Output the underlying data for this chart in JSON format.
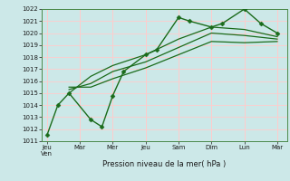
{
  "title": "",
  "xlabel": "Pression niveau de la mer( hPa )",
  "bg_color": "#cce8e8",
  "grid_color": "#ffcccc",
  "line_color": "#1a6b1a",
  "ylim": [
    1011,
    1022
  ],
  "yticks": [
    1011,
    1012,
    1013,
    1014,
    1015,
    1016,
    1017,
    1018,
    1019,
    1020,
    1021,
    1022
  ],
  "x_labels": [
    "Jeu\nVen",
    "Mar",
    "Mer",
    "Jeu",
    "Sam",
    "Dim",
    "Lun",
    "Mar"
  ],
  "x_positions": [
    0,
    1,
    2,
    3,
    4,
    5,
    6,
    7
  ],
  "xlim": [
    -0.15,
    7.3
  ],
  "series": [
    {
      "x": [
        0,
        0.33,
        0.67,
        1.33,
        1.67,
        2,
        2.33,
        3,
        3.33,
        4,
        4.33,
        5,
        5.33,
        6,
        6.5,
        7
      ],
      "y": [
        1011.5,
        1014.0,
        1015.0,
        1012.8,
        1012.2,
        1014.8,
        1016.8,
        1018.2,
        1018.6,
        1021.3,
        1021.0,
        1020.5,
        1020.8,
        1022.0,
        1020.8,
        1020.0
      ],
      "marker": "D",
      "markersize": 2.5,
      "linewidth": 1.0
    },
    {
      "x": [
        0.67,
        1.33,
        2,
        3,
        4,
        5,
        6,
        7
      ],
      "y": [
        1015.0,
        1016.4,
        1017.3,
        1018.2,
        1019.5,
        1020.5,
        1020.3,
        1019.7
      ],
      "marker": null,
      "linewidth": 0.9
    },
    {
      "x": [
        0.67,
        1.33,
        2,
        3,
        4,
        5,
        6,
        7
      ],
      "y": [
        1015.3,
        1015.8,
        1016.8,
        1017.6,
        1018.8,
        1020.0,
        1019.8,
        1019.5
      ],
      "marker": null,
      "linewidth": 0.9
    },
    {
      "x": [
        0.67,
        1.33,
        2,
        3,
        4,
        5,
        6,
        7
      ],
      "y": [
        1015.5,
        1015.5,
        1016.2,
        1017.1,
        1018.2,
        1019.3,
        1019.2,
        1019.3
      ],
      "marker": null,
      "linewidth": 0.9
    }
  ]
}
